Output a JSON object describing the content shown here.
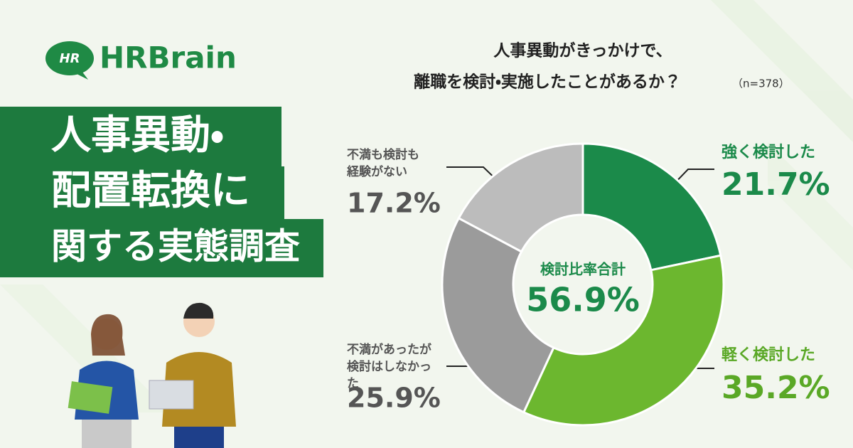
{
  "brand": "HRBrain",
  "title_lines": [
    "人事異動・",
    "配置転換に",
    "関する実態調査"
  ],
  "chart_data": {
    "type": "pie",
    "title": [
      "人事異動がきっかけで、",
      "離職を検討・実施したことがあるか？"
    ],
    "note": "（n=378）",
    "categories": [
      "強く検討した",
      "軽く検討した",
      "不満があったが検討はしなかった",
      "不満も検討も経験がない"
    ],
    "values": [
      21.7,
      35.2,
      25.9,
      17.2
    ],
    "value_labels": [
      "21.7%",
      "35.2%",
      "25.9%",
      "17.2%"
    ],
    "colors": [
      "#1b8a4a",
      "#6cb72f",
      "#9b9b9b",
      "#bcbcbc"
    ],
    "center_label": "検討比率合計",
    "center_value": "56.9%"
  }
}
